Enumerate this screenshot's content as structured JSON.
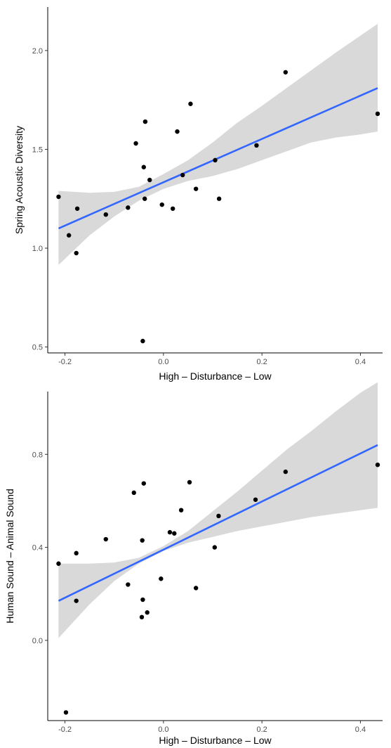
{
  "chart_data": [
    {
      "type": "scatter",
      "title": "",
      "xlabel": "High – Disturbance – Low",
      "ylabel": "Spring Acoustic Diversity",
      "xlim": [
        -0.235,
        0.445
      ],
      "ylim": [
        0.47,
        2.22
      ],
      "xticks": [
        -0.2,
        0.0,
        0.2,
        0.4
      ],
      "xtick_labels": [
        "-0.2",
        "0.0",
        "0.2",
        "0.4"
      ],
      "yticks": [
        0.5,
        1.0,
        1.5,
        2.0
      ],
      "ytick_labels": [
        "0.5",
        "1.0",
        "1.5",
        "2.0"
      ],
      "grid": false,
      "points": {
        "x": [
          -0.213,
          -0.192,
          -0.177,
          -0.175,
          -0.117,
          -0.072,
          -0.056,
          -0.042,
          -0.04,
          -0.038,
          -0.037,
          -0.028,
          -0.003,
          0.019,
          0.028,
          0.039,
          0.055,
          0.066,
          0.105,
          0.113,
          0.189,
          0.248,
          0.435
        ],
        "y": [
          1.26,
          1.065,
          0.975,
          1.2,
          1.17,
          1.205,
          1.53,
          0.53,
          1.41,
          1.25,
          1.64,
          1.345,
          1.22,
          1.2,
          1.59,
          1.37,
          1.73,
          1.3,
          1.445,
          1.25,
          1.52,
          1.89,
          1.68
        ]
      },
      "fit_line": {
        "x": [
          -0.213,
          0.435
        ],
        "y": [
          1.1,
          1.81
        ],
        "color": "#3366ff"
      },
      "confidence_band": {
        "x": [
          -0.213,
          -0.15,
          -0.1,
          -0.05,
          0.0,
          0.05,
          0.1,
          0.15,
          0.2,
          0.25,
          0.3,
          0.35,
          0.4,
          0.435
        ],
        "lower": [
          0.915,
          1.065,
          1.16,
          1.24,
          1.3,
          1.34,
          1.365,
          1.4,
          1.445,
          1.49,
          1.535,
          1.56,
          1.575,
          1.59
        ],
        "upper": [
          1.29,
          1.28,
          1.285,
          1.31,
          1.375,
          1.445,
          1.535,
          1.635,
          1.72,
          1.81,
          1.9,
          1.99,
          2.075,
          2.135
        ],
        "color": "#d9d9d9"
      },
      "point_color": "#000000"
    },
    {
      "type": "scatter",
      "title": "",
      "xlabel": "High – Disturbance – Low",
      "ylabel": "Human Sound – Animal Sound",
      "xlim": [
        -0.235,
        0.445
      ],
      "ylim": [
        -0.345,
        1.07
      ],
      "xticks": [
        -0.2,
        0.0,
        0.2,
        0.4
      ],
      "xtick_labels": [
        "-0.2",
        "0.0",
        "0.2",
        "0.4"
      ],
      "yticks": [
        0.0,
        0.4,
        0.8
      ],
      "ytick_labels": [
        "0.0",
        "0.4",
        "0.8"
      ],
      "grid": false,
      "points": {
        "x": [
          -0.213,
          -0.198,
          -0.177,
          -0.177,
          -0.117,
          -0.072,
          -0.06,
          -0.044,
          -0.043,
          -0.042,
          -0.04,
          -0.033,
          -0.005,
          0.013,
          0.022,
          0.036,
          0.053,
          0.066,
          0.104,
          0.112,
          0.187,
          0.248,
          0.435
        ],
        "y": [
          0.33,
          -0.31,
          0.375,
          0.17,
          0.435,
          0.24,
          0.635,
          0.1,
          0.43,
          0.175,
          0.675,
          0.12,
          0.265,
          0.465,
          0.46,
          0.56,
          0.68,
          0.225,
          0.4,
          0.535,
          0.605,
          0.725,
          0.755
        ],
        "_comment": ""
      },
      "fit_line": {
        "x": [
          -0.213,
          0.435
        ],
        "y": [
          0.17,
          0.84
        ],
        "color": "#3366ff"
      },
      "confidence_band": {
        "x": [
          -0.213,
          -0.15,
          -0.1,
          -0.05,
          0.0,
          0.05,
          0.1,
          0.15,
          0.2,
          0.25,
          0.3,
          0.35,
          0.4,
          0.435
        ],
        "lower": [
          0.01,
          0.155,
          0.255,
          0.33,
          0.385,
          0.42,
          0.445,
          0.47,
          0.49,
          0.51,
          0.53,
          0.545,
          0.56,
          0.57
        ],
        "upper": [
          0.33,
          0.33,
          0.335,
          0.355,
          0.405,
          0.47,
          0.555,
          0.64,
          0.73,
          0.82,
          0.9,
          0.985,
          1.065,
          1.11
        ],
        "color": "#d9d9d9"
      },
      "point_color": "#000000"
    }
  ]
}
